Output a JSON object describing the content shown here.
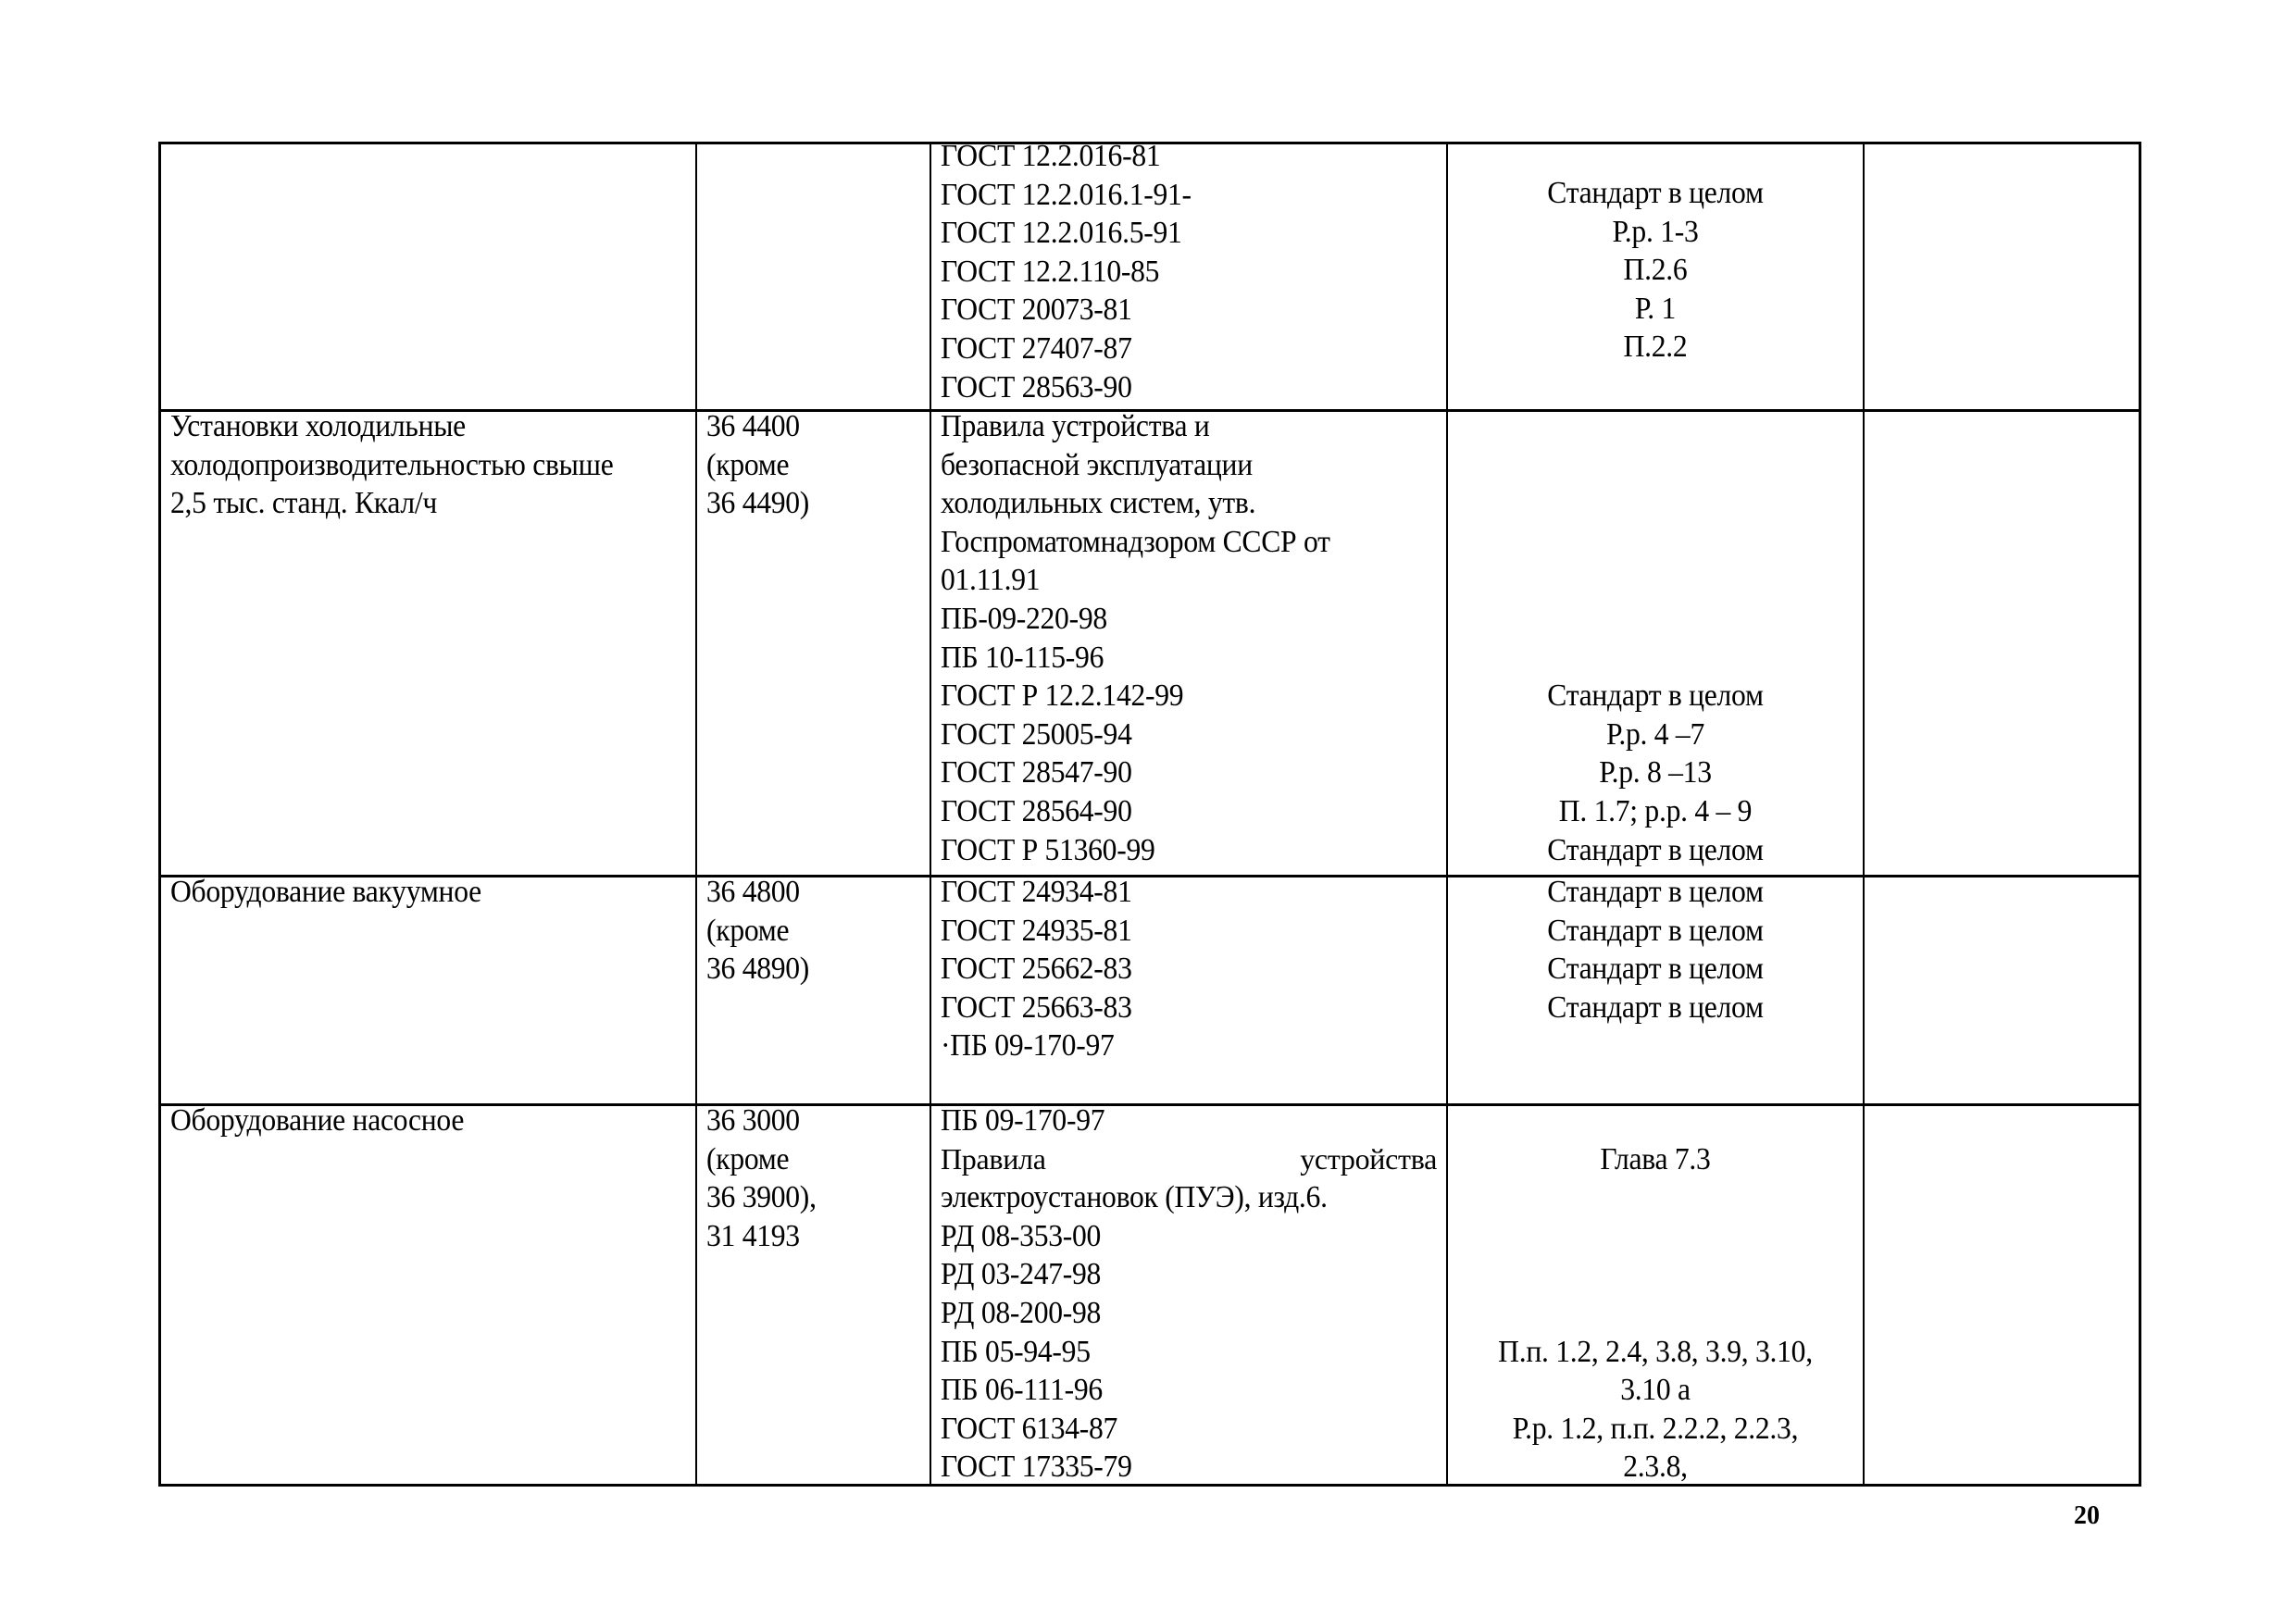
{
  "table": {
    "rows": [
      {
        "name": "",
        "code": [],
        "documents": [
          "ГОСТ 12.2.016-81",
          "ГОСТ 12.2.016.1-91-",
          "ГОСТ 12.2.016.5-91",
          "ГОСТ 12.2.110-85",
          "ГОСТ 20073-81",
          "ГОСТ 27407-87",
          "ГОСТ 28563-90"
        ],
        "sections": [
          "Стандарт в целом",
          "Р.р. 1-3",
          "П.2.6",
          "Р. 1",
          "П.2.2"
        ],
        "notes": []
      },
      {
        "name": [
          "Установки холодильные",
          "холодопроизводительностью свыше",
          "2,5 тыс. станд. Ккал/ч"
        ],
        "code": [
          "36 4400",
          "(кроме",
          "36 4490)"
        ],
        "documents": [
          "Правила устройства и",
          "безопасной эксплуатации",
          "холодильных систем, утв.",
          "Госпроматомнадзором СССР от",
          "01.11.91",
          "ПБ-09-220-98",
          "ПБ 10-115-96",
          "ГОСТ Р 12.2.142-99",
          "ГОСТ 25005-94",
          "ГОСТ 28547-90",
          "ГОСТ 28564-90",
          "ГОСТ Р 51360-99"
        ],
        "sections": [
          "",
          "",
          "",
          "",
          "",
          "",
          "",
          "Стандарт в целом",
          "Р.р. 4 –7",
          "Р.р. 8 –13",
          "П. 1.7; р.р. 4 – 9",
          "Стандарт в целом"
        ],
        "notes": []
      },
      {
        "name": [
          "Оборудование вакуумное"
        ],
        "code": [
          "36 4800",
          "(кроме",
          "36 4890)"
        ],
        "documents": [
          "ГОСТ 24934-81",
          "ГОСТ 24935-81",
          "ГОСТ 25662-83",
          "ГОСТ 25663-83",
          "·ПБ 09-170-97"
        ],
        "sections": [
          "Стандарт в целом",
          "Стандарт в целом",
          "Стандарт в целом",
          "Стандарт в целом"
        ],
        "notes": []
      },
      {
        "name": [
          "Оборудование насосное"
        ],
        "code": [
          "36 3000",
          "(кроме",
          "36 3900),",
          "31 4193"
        ],
        "documents": [
          "ПБ 09-170-97",
          "Правила устройства",
          "электроустановок (ПУЭ), изд.6.",
          "РД 08-353-00",
          "РД 03-247-98",
          "РД 08-200-98",
          "ПБ 05-94-95",
          "ПБ 06-111-96",
          "ГОСТ 6134-87",
          "ГОСТ 17335-79"
        ],
        "sections": [
          "",
          "Глава 7.3",
          "",
          "",
          "",
          "",
          "П.п. 1.2, 2.4, 3.8, 3.9, 3.10,",
          "3.10 а",
          "Р.р. 1.2, п.п. 2.2.2, 2.2.3,",
          "2.3.8,"
        ],
        "notes": []
      }
    ]
  },
  "page_number": "20"
}
